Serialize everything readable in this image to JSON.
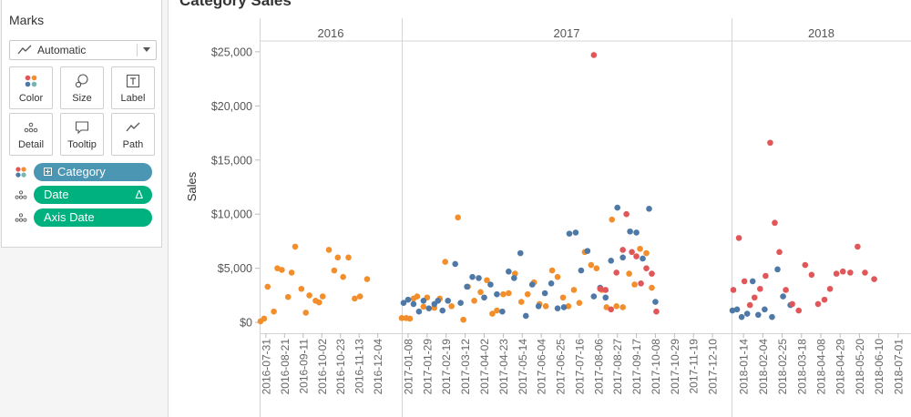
{
  "sheet": {
    "title": "Category Sales"
  },
  "marks": {
    "title": "Marks",
    "mark_type": "Automatic",
    "buttons": [
      {
        "label": "Color",
        "icon": "color-icon"
      },
      {
        "label": "Size",
        "icon": "size-icon"
      },
      {
        "label": "Label",
        "icon": "label-icon"
      },
      {
        "label": "Detail",
        "icon": "detail-icon"
      },
      {
        "label": "Tooltip",
        "icon": "tooltip-icon"
      },
      {
        "label": "Path",
        "icon": "path-icon"
      }
    ],
    "pills": [
      {
        "label": "Category",
        "type": "color",
        "color": "#4a96b3",
        "expand_icon": "plus-box-icon"
      },
      {
        "label": "Date",
        "type": "detail",
        "color": "#00b180",
        "delta": "Δ"
      },
      {
        "label": "Axis Date",
        "type": "detail",
        "color": "#00b180"
      }
    ]
  },
  "chart_data": {
    "type": "scatter",
    "title": "Category Sales",
    "ylabel": "Sales",
    "ylim": [
      -1000,
      26000
    ],
    "y_ticks": [
      "$25,000",
      "$20,000",
      "$15,000",
      "$10,000",
      "$5,000",
      "$0"
    ],
    "y_tick_values": [
      25000,
      20000,
      15000,
      10000,
      5000,
      0
    ],
    "grid": false,
    "panels": [
      {
        "header": "2016",
        "x_ticks": [
          "2016-07-31",
          "2016-08-21",
          "2016-09-11",
          "2016-10-02",
          "2016-10-23",
          "2016-11-13",
          "2016-12-04"
        ],
        "x_start": "2016-07-24",
        "x_end": "2016-12-31"
      },
      {
        "header": "2017",
        "x_ticks": [
          "2017-01-08",
          "2017-01-29",
          "2017-02-19",
          "2017-03-12",
          "2017-04-02",
          "2017-04-23",
          "2017-05-14",
          "2017-06-04",
          "2017-06-25",
          "2017-07-16",
          "2017-08-06",
          "2017-08-27",
          "2017-09-17",
          "2017-10-08",
          "2017-10-29",
          "2017-11-19",
          "2017-12-10"
        ],
        "x_start": "2017-01-01",
        "x_end": "2017-12-31"
      },
      {
        "header": "2018",
        "x_ticks": [
          "2018-01-14",
          "2018-02-04",
          "2018-02-25",
          "2018-03-18",
          "2018-04-08",
          "2018-04-29",
          "2018-05-20",
          "2018-06-10",
          "2018-07-01"
        ],
        "x_start": "2018-01-01",
        "x_end": "2018-07-15"
      }
    ],
    "series": [
      {
        "color": "#f28e2b",
        "points": [
          [
            "2016-07-25",
            100
          ],
          [
            "2016-07-29",
            350
          ],
          [
            "2016-08-02",
            3300
          ],
          [
            "2016-08-09",
            1000
          ],
          [
            "2016-08-13",
            5000
          ],
          [
            "2016-08-18",
            4850
          ],
          [
            "2016-08-25",
            2350
          ],
          [
            "2016-08-29",
            4600
          ],
          [
            "2016-09-02",
            7000
          ],
          [
            "2016-09-09",
            3100
          ],
          [
            "2016-09-14",
            900
          ],
          [
            "2016-09-18",
            2500
          ],
          [
            "2016-09-25",
            2000
          ],
          [
            "2016-09-29",
            1850
          ],
          [
            "2016-10-03",
            2400
          ],
          [
            "2016-10-10",
            6700
          ],
          [
            "2016-10-16",
            4800
          ],
          [
            "2016-10-20",
            6000
          ],
          [
            "2016-10-26",
            4200
          ],
          [
            "2016-11-01",
            6000
          ],
          [
            "2016-11-08",
            2200
          ],
          [
            "2016-11-14",
            2400
          ],
          [
            "2016-11-22",
            4000
          ],
          [
            "2017-01-01",
            400
          ],
          [
            "2017-01-06",
            400
          ],
          [
            "2017-01-10",
            350
          ],
          [
            "2017-01-14",
            2200
          ],
          [
            "2017-01-18",
            2400
          ],
          [
            "2017-01-25",
            1450
          ],
          [
            "2017-01-29",
            2300
          ],
          [
            "2017-02-06",
            1350
          ],
          [
            "2017-02-12",
            2200
          ],
          [
            "2017-02-18",
            5600
          ],
          [
            "2017-02-25",
            1500
          ],
          [
            "2017-03-04",
            9700
          ],
          [
            "2017-03-10",
            250
          ],
          [
            "2017-03-15",
            3300
          ],
          [
            "2017-03-22",
            2000
          ],
          [
            "2017-03-29",
            2800
          ],
          [
            "2017-04-05",
            3900
          ],
          [
            "2017-04-11",
            800
          ],
          [
            "2017-04-16",
            1100
          ],
          [
            "2017-04-23",
            2600
          ],
          [
            "2017-04-29",
            2700
          ],
          [
            "2017-05-06",
            4500
          ],
          [
            "2017-05-13",
            1900
          ],
          [
            "2017-05-20",
            2600
          ],
          [
            "2017-05-27",
            3700
          ],
          [
            "2017-06-02",
            1700
          ],
          [
            "2017-06-09",
            1500
          ],
          [
            "2017-06-16",
            4800
          ],
          [
            "2017-06-22",
            4200
          ],
          [
            "2017-06-28",
            2300
          ],
          [
            "2017-07-04",
            1500
          ],
          [
            "2017-07-10",
            3000
          ],
          [
            "2017-07-16",
            1800
          ],
          [
            "2017-07-22",
            6500
          ],
          [
            "2017-07-29",
            5300
          ],
          [
            "2017-08-04",
            5000
          ],
          [
            "2017-08-10",
            3000
          ],
          [
            "2017-08-15",
            1400
          ],
          [
            "2017-08-21",
            9500
          ],
          [
            "2017-08-26",
            1500
          ],
          [
            "2017-09-02",
            1400
          ],
          [
            "2017-09-09",
            4500
          ],
          [
            "2017-09-15",
            3500
          ],
          [
            "2017-09-21",
            6800
          ],
          [
            "2017-09-28",
            6400
          ],
          [
            "2017-10-04",
            3200
          ]
        ]
      },
      {
        "color": "#4e79a7",
        "points": [
          [
            "2017-01-03",
            1800
          ],
          [
            "2017-01-08",
            2100
          ],
          [
            "2017-01-14",
            1700
          ],
          [
            "2017-01-20",
            1000
          ],
          [
            "2017-01-25",
            2000
          ],
          [
            "2017-01-31",
            1300
          ],
          [
            "2017-02-06",
            1700
          ],
          [
            "2017-02-10",
            2000
          ],
          [
            "2017-02-15",
            1100
          ],
          [
            "2017-02-21",
            2000
          ],
          [
            "2017-03-01",
            5400
          ],
          [
            "2017-03-07",
            1800
          ],
          [
            "2017-03-14",
            3300
          ],
          [
            "2017-03-20",
            4200
          ],
          [
            "2017-03-27",
            4100
          ],
          [
            "2017-04-02",
            2300
          ],
          [
            "2017-04-09",
            3500
          ],
          [
            "2017-04-16",
            2600
          ],
          [
            "2017-04-22",
            1000
          ],
          [
            "2017-04-29",
            4700
          ],
          [
            "2017-05-05",
            4100
          ],
          [
            "2017-05-12",
            6400
          ],
          [
            "2017-05-18",
            600
          ],
          [
            "2017-05-25",
            3500
          ],
          [
            "2017-06-01",
            1500
          ],
          [
            "2017-06-08",
            2700
          ],
          [
            "2017-06-15",
            3600
          ],
          [
            "2017-06-22",
            1300
          ],
          [
            "2017-06-29",
            1400
          ],
          [
            "2017-07-05",
            8200
          ],
          [
            "2017-07-12",
            8300
          ],
          [
            "2017-07-18",
            4800
          ],
          [
            "2017-07-25",
            6600
          ],
          [
            "2017-08-01",
            2400
          ],
          [
            "2017-08-08",
            3200
          ],
          [
            "2017-08-14",
            2300
          ],
          [
            "2017-08-20",
            5700
          ],
          [
            "2017-08-27",
            10600
          ],
          [
            "2017-09-02",
            6000
          ],
          [
            "2017-09-10",
            8400
          ],
          [
            "2017-09-17",
            8300
          ],
          [
            "2017-09-24",
            5900
          ],
          [
            "2017-10-01",
            10500
          ],
          [
            "2017-10-08",
            1900
          ],
          [
            "2018-01-02",
            1100
          ],
          [
            "2018-01-07",
            1200
          ],
          [
            "2018-01-12",
            500
          ],
          [
            "2018-01-18",
            800
          ],
          [
            "2018-01-24",
            3800
          ],
          [
            "2018-01-30",
            700
          ],
          [
            "2018-02-06",
            1200
          ],
          [
            "2018-02-14",
            500
          ],
          [
            "2018-02-20",
            4900
          ],
          [
            "2018-02-26",
            2400
          ],
          [
            "2018-03-06",
            1600
          ]
        ]
      },
      {
        "color": "#e15759",
        "points": [
          [
            "2017-08-01",
            24700
          ],
          [
            "2017-08-08",
            3100
          ],
          [
            "2017-08-14",
            3000
          ],
          [
            "2017-08-20",
            1200
          ],
          [
            "2017-08-26",
            4600
          ],
          [
            "2017-09-02",
            6700
          ],
          [
            "2017-09-06",
            10000
          ],
          [
            "2017-09-12",
            6500
          ],
          [
            "2017-09-17",
            6100
          ],
          [
            "2017-09-22",
            3600
          ],
          [
            "2017-09-28",
            5000
          ],
          [
            "2017-10-04",
            4500
          ],
          [
            "2017-10-09",
            1000
          ],
          [
            "2018-01-03",
            3000
          ],
          [
            "2018-01-09",
            7800
          ],
          [
            "2018-01-15",
            3800
          ],
          [
            "2018-01-21",
            1600
          ],
          [
            "2018-01-26",
            2300
          ],
          [
            "2018-02-01",
            3100
          ],
          [
            "2018-02-07",
            4300
          ],
          [
            "2018-02-12",
            16600
          ],
          [
            "2018-02-17",
            9200
          ],
          [
            "2018-02-22",
            6500
          ],
          [
            "2018-03-01",
            3000
          ],
          [
            "2018-03-08",
            1700
          ],
          [
            "2018-03-15",
            1100
          ],
          [
            "2018-03-22",
            5300
          ],
          [
            "2018-03-29",
            4400
          ],
          [
            "2018-04-05",
            1700
          ],
          [
            "2018-04-12",
            2100
          ],
          [
            "2018-04-18",
            3100
          ],
          [
            "2018-04-25",
            4500
          ],
          [
            "2018-05-02",
            4700
          ],
          [
            "2018-05-10",
            4600
          ],
          [
            "2018-05-18",
            7000
          ],
          [
            "2018-05-26",
            4600
          ],
          [
            "2018-06-05",
            4000
          ]
        ]
      }
    ]
  }
}
